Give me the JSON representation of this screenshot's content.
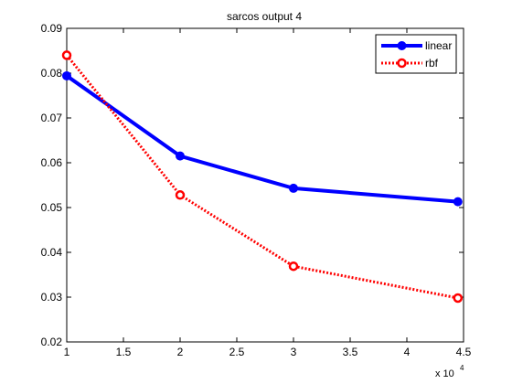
{
  "chart_data": {
    "type": "line",
    "title": "sarcos output 4",
    "xlabel": "",
    "ylabel": "",
    "x_exponent_label": "x 10",
    "x_exponent_power": "4",
    "xlim": [
      1,
      4.5
    ],
    "ylim": [
      0.02,
      0.09
    ],
    "xticks": [
      1,
      1.5,
      2,
      2.5,
      3,
      3.5,
      4,
      4.5
    ],
    "xtick_labels": [
      "1",
      "1.5",
      "2",
      "2.5",
      "3",
      "3.5",
      "4",
      "4.5"
    ],
    "yticks": [
      0.02,
      0.03,
      0.04,
      0.05,
      0.06,
      0.07,
      0.08,
      0.09
    ],
    "ytick_labels": [
      "0.02",
      "0.03",
      "0.04",
      "0.05",
      "0.06",
      "0.07",
      "0.08",
      "0.09"
    ],
    "grid": false,
    "legend_position": "top-right",
    "series": [
      {
        "name": "linear",
        "color": "#0000ff",
        "line_style": "solid",
        "marker": "circle-filled",
        "x": [
          1.0,
          2.0,
          3.0,
          4.45
        ],
        "y": [
          0.0794,
          0.0615,
          0.0543,
          0.0513
        ]
      },
      {
        "name": "rbf",
        "color": "#ff0000",
        "line_style": "dotted",
        "marker": "circle-open",
        "x": [
          1.0,
          2.0,
          3.0,
          4.45
        ],
        "y": [
          0.084,
          0.0528,
          0.0369,
          0.0298
        ]
      }
    ]
  }
}
